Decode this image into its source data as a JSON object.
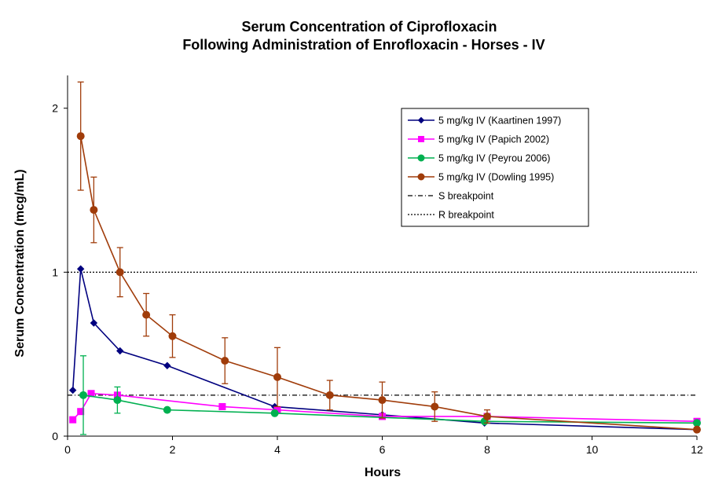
{
  "chart_data": {
    "type": "line",
    "title": [
      "Serum Concentration of Ciprofloxacin",
      "Following Administration of Enrofloxacin - Horses - IV"
    ],
    "xlabel": "Hours",
    "ylabel": "Serum Concentration (mcg/mL)",
    "xlim": [
      0,
      12
    ],
    "ylim": [
      0,
      2.2
    ],
    "xticks": [
      0,
      2,
      4,
      6,
      8,
      10,
      12
    ],
    "yticks": [
      0,
      1,
      2
    ],
    "grid": false,
    "legend_position": "top-right",
    "series": [
      {
        "name": "5 mg/kg IV (Kaartinen 1997)",
        "color": "#00007f",
        "marker": "diamond",
        "x": [
          0.1,
          0.25,
          0.5,
          1.0,
          1.9,
          3.95,
          6.0,
          7.95,
          12.0
        ],
        "y": [
          0.28,
          1.02,
          0.69,
          0.52,
          0.43,
          0.18,
          0.13,
          0.08,
          0.04
        ]
      },
      {
        "name": "5 mg/kg IV (Papich 2002)",
        "color": "#ff00ff",
        "marker": "square",
        "x": [
          0.1,
          0.25,
          0.45,
          0.95,
          2.95,
          4.0,
          6.0,
          8.0,
          12.0
        ],
        "y": [
          0.1,
          0.15,
          0.26,
          0.25,
          0.18,
          0.16,
          0.12,
          0.12,
          0.09
        ]
      },
      {
        "name": "5 mg/kg IV (Peyrou 2006)",
        "color": "#00b050",
        "marker": "circle",
        "x": [
          0.3,
          0.95,
          1.9,
          3.95,
          7.95,
          12.0
        ],
        "y": [
          0.25,
          0.22,
          0.16,
          0.14,
          0.09,
          0.08
        ],
        "error": [
          0.24,
          0.08,
          0,
          0,
          0,
          0
        ]
      },
      {
        "name": "5 mg/kg IV (Dowling 1995)",
        "color": "#a03c0a",
        "marker": "circle",
        "x": [
          0.25,
          0.5,
          1.0,
          1.5,
          2.0,
          3.0,
          4.0,
          5.0,
          6.0,
          7.0,
          8.0,
          12.0
        ],
        "y": [
          1.83,
          1.38,
          1.0,
          0.74,
          0.61,
          0.46,
          0.36,
          0.25,
          0.22,
          0.18,
          0.12,
          0.04
        ],
        "error": [
          0.33,
          0.2,
          0.15,
          0.13,
          0.13,
          0.14,
          0.18,
          0.09,
          0.11,
          0.09,
          0.04,
          0
        ]
      },
      {
        "name": "S breakpoint",
        "color": "#000000",
        "style": "dash-dot",
        "y_constant": 0.25
      },
      {
        "name": "R breakpoint",
        "color": "#000000",
        "style": "dotted",
        "y_constant": 1.0
      }
    ]
  }
}
